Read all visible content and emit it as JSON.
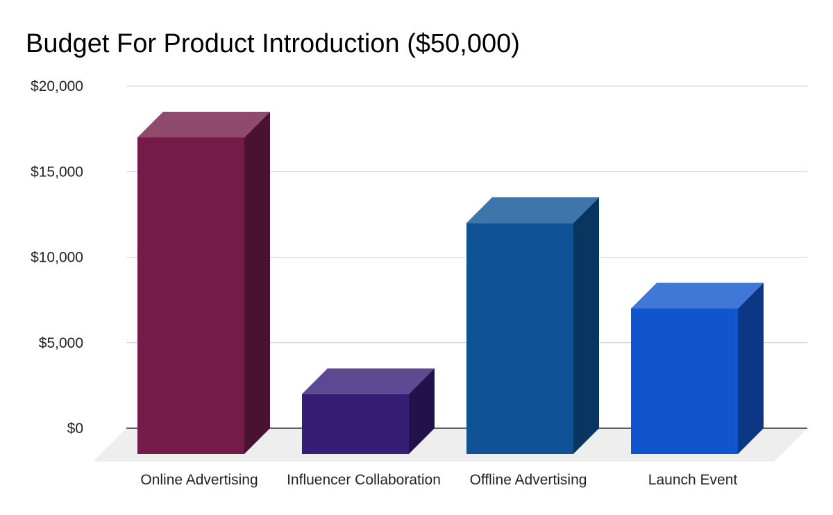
{
  "chart_data": {
    "type": "bar",
    "title": "Budget For Product Introduction ($50,000)",
    "xlabel": "",
    "ylabel": "",
    "categories": [
      "Online Advertising",
      "Influencer Collaboration",
      "Offline Advertising",
      "Launch Event"
    ],
    "values": [
      18500,
      3500,
      13500,
      8500
    ],
    "ylim": [
      0,
      20000
    ],
    "y_ticks": [
      {
        "value": 0,
        "label": "$0"
      },
      {
        "value": 5000,
        "label": "$5,000"
      },
      {
        "value": 10000,
        "label": "$10,000"
      },
      {
        "value": 15000,
        "label": "$15,000"
      },
      {
        "value": 20000,
        "label": "$20,000"
      }
    ],
    "grid": true,
    "legend": "none",
    "style": "3d",
    "colors": {
      "front": [
        "#741C47",
        "#351C75",
        "#0F5296",
        "#1155CC"
      ],
      "top": [
        "#904A6C",
        "#5D4991",
        "#3E75AB",
        "#4177D6"
      ],
      "side": [
        "#4A1230",
        "#21124B",
        "#093661",
        "#0C3785"
      ],
      "floor": "#EEEEEE",
      "gridline": "#CCCCCC",
      "baseline": "#333333"
    }
  }
}
